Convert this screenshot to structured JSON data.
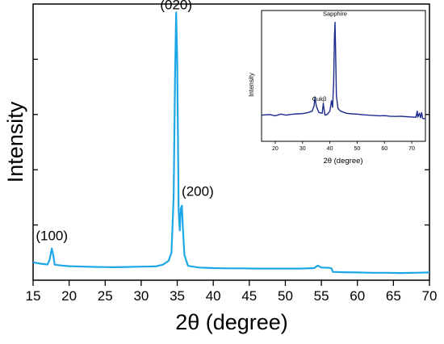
{
  "chart_data": [
    {
      "type": "line",
      "title": "",
      "xlabel": "2θ (degree)",
      "ylabel": "Intensity",
      "xlim": [
        15,
        70
      ],
      "ylim": [
        0,
        100
      ],
      "x_ticks": [
        15,
        20,
        25,
        30,
        35,
        40,
        45,
        50,
        55,
        60,
        65,
        70
      ],
      "y_tick_labels_shown": false,
      "grid": false,
      "series_color": "#1ea7e6",
      "series": [
        {
          "values": [
            [
              15,
              6.5
            ],
            [
              16,
              6.0
            ],
            [
              17,
              5.7
            ],
            [
              17.3,
              7.5
            ],
            [
              17.6,
              11.5
            ],
            [
              17.8,
              9.0
            ],
            [
              18.0,
              5.6
            ],
            [
              19,
              5.3
            ],
            [
              20,
              5.1
            ],
            [
              22,
              4.9
            ],
            [
              24,
              4.8
            ],
            [
              26,
              4.7
            ],
            [
              28,
              4.8
            ],
            [
              30,
              4.9
            ],
            [
              32,
              5.0
            ],
            [
              33,
              5.6
            ],
            [
              33.8,
              7.0
            ],
            [
              34.2,
              10.0
            ],
            [
              34.5,
              30.0
            ],
            [
              34.7,
              75.0
            ],
            [
              34.85,
              97.0
            ],
            [
              35.0,
              80.0
            ],
            [
              35.2,
              25.0
            ],
            [
              35.35,
              18.0
            ],
            [
              35.5,
              26.0
            ],
            [
              35.65,
              27.0
            ],
            [
              35.8,
              18.0
            ],
            [
              36.0,
              9.0
            ],
            [
              36.5,
              5.2
            ],
            [
              38,
              4.6
            ],
            [
              40,
              4.4
            ],
            [
              42,
              4.3
            ],
            [
              44,
              4.3
            ],
            [
              46,
              4.2
            ],
            [
              48,
              4.2
            ],
            [
              50,
              4.2
            ],
            [
              52,
              4.2
            ],
            [
              54,
              4.4
            ],
            [
              54.5,
              5.3
            ],
            [
              55,
              4.6
            ],
            [
              56,
              4.5
            ],
            [
              56.4,
              4.3
            ],
            [
              56.6,
              3.0
            ],
            [
              58,
              2.9
            ],
            [
              60,
              2.8
            ],
            [
              62,
              2.7
            ],
            [
              64,
              2.7
            ],
            [
              66,
              2.6
            ],
            [
              68,
              2.7
            ],
            [
              70,
              2.8
            ]
          ]
        }
      ],
      "annotations": [
        {
          "text": "(100)",
          "x": 17.6
        },
        {
          "text": "(020)",
          "x": 34.85
        },
        {
          "text": "(200)",
          "x": 35.6
        }
      ]
    },
    {
      "type": "line",
      "title": "",
      "xlabel": "2θ (degree)",
      "ylabel": "Intensity",
      "xlim": [
        15,
        75
      ],
      "ylim": [
        0,
        100
      ],
      "x_ticks": [
        20,
        30,
        40,
        50,
        60,
        70
      ],
      "grid": false,
      "series_color": "#1b2a8c",
      "series": [
        {
          "values": [
            [
              15,
              20.0
            ],
            [
              18,
              20.5
            ],
            [
              20,
              19.5
            ],
            [
              22,
              20.8
            ],
            [
              24,
              20.0
            ],
            [
              26,
              20.6
            ],
            [
              28,
              21.0
            ],
            [
              30,
              21.2
            ],
            [
              32,
              22.0
            ],
            [
              33.5,
              23.0
            ],
            [
              34.2,
              27.0
            ],
            [
              34.6,
              34.0
            ],
            [
              34.8,
              30.0
            ],
            [
              35.2,
              26.0
            ],
            [
              36,
              22.0
            ],
            [
              37.2,
              21.5
            ],
            [
              37.6,
              29.0
            ],
            [
              37.8,
              26.0
            ],
            [
              38.2,
              20.0
            ],
            [
              39,
              20.5
            ],
            [
              40,
              23.0
            ],
            [
              40.6,
              31.0
            ],
            [
              41,
              26.0
            ],
            [
              41.4,
              45.0
            ],
            [
              41.7,
              80.0
            ],
            [
              41.9,
              91.0
            ],
            [
              42.1,
              70.0
            ],
            [
              42.4,
              35.0
            ],
            [
              43,
              25.0
            ],
            [
              44,
              23.0
            ],
            [
              46,
              21.5
            ],
            [
              48,
              21.0
            ],
            [
              50,
              20.8
            ],
            [
              52,
              20.3
            ],
            [
              54,
              20.0
            ],
            [
              56,
              19.8
            ],
            [
              58,
              19.5
            ],
            [
              60,
              19.6
            ],
            [
              62,
              19.2
            ],
            [
              64,
              19.0
            ],
            [
              66,
              19.2
            ],
            [
              68,
              18.8
            ],
            [
              70,
              18.6
            ],
            [
              71.5,
              18.4
            ],
            [
              72,
              23.0
            ],
            [
              72.2,
              18.5
            ],
            [
              72.8,
              21.5
            ],
            [
              73.2,
              18.0
            ],
            [
              73.6,
              22.0
            ],
            [
              74,
              17.5
            ],
            [
              75,
              17.2
            ]
          ]
        }
      ],
      "annotations": [
        {
          "text": "Sapphire",
          "x": 41.9
        },
        {
          "text": "Cukβ",
          "x": 37.6
        }
      ]
    }
  ]
}
